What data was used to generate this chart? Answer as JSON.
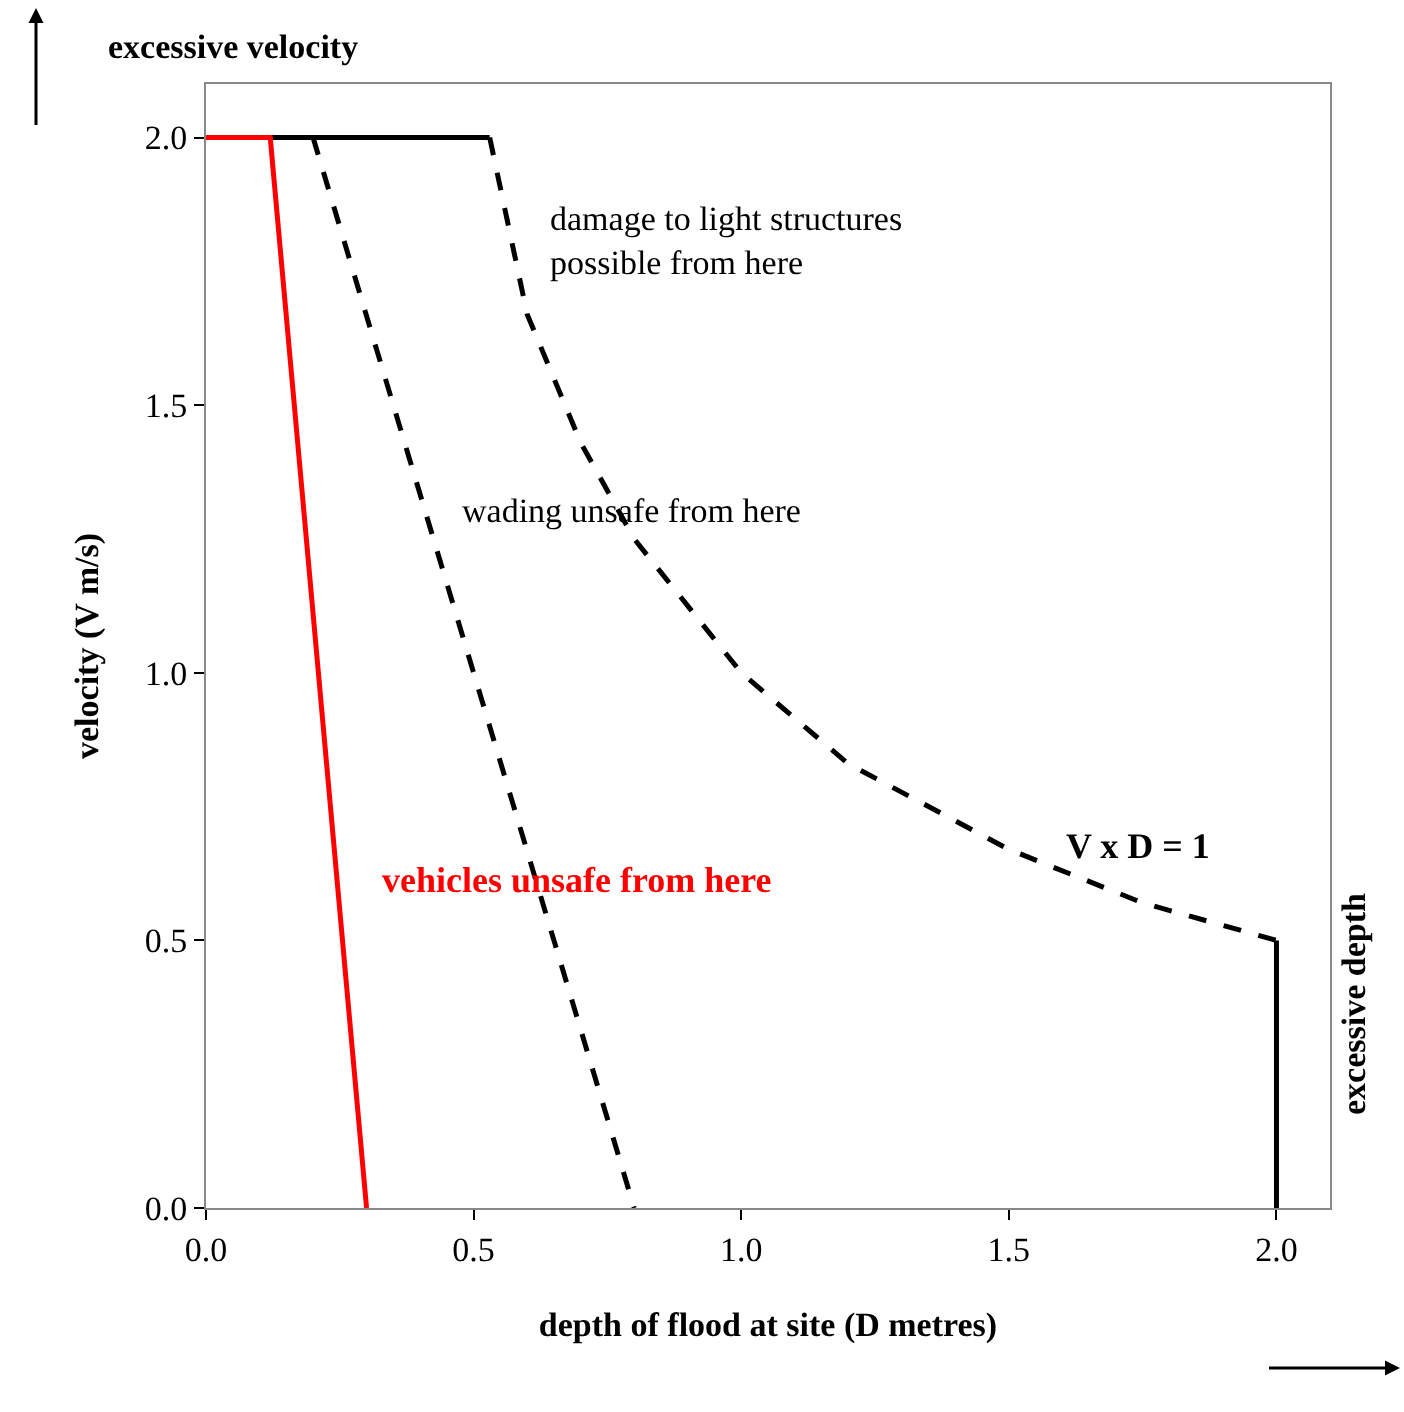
{
  "chart_data": {
    "type": "line",
    "xlabel": "depth of flood at site (D metres)",
    "ylabel": "velocity (V m/s)",
    "xlim": [
      0,
      2.1
    ],
    "ylim": [
      0,
      2.1
    ],
    "xticks": [
      {
        "value": 0,
        "label": "0.0"
      },
      {
        "value": 0.5,
        "label": "0.5"
      },
      {
        "value": 1,
        "label": "1.0"
      },
      {
        "value": 1.5,
        "label": "1.5"
      },
      {
        "value": 2,
        "label": "2.0"
      }
    ],
    "yticks": [
      {
        "value": 0,
        "label": "0.0"
      },
      {
        "value": 0.5,
        "label": "0.5"
      },
      {
        "value": 1,
        "label": "1.0"
      },
      {
        "value": 1.5,
        "label": "1.5"
      },
      {
        "value": 2,
        "label": "2.0"
      }
    ],
    "marker": "none",
    "series": [
      {
        "color": "#000000",
        "line_style": "solid",
        "x": [
          0,
          0.53
        ],
        "values": [
          2,
          2
        ]
      },
      {
        "color": "#000000",
        "line_style": "dashed",
        "x": [
          0.53,
          0.6,
          0.7,
          0.8,
          1.0,
          1.2,
          1.5,
          1.75,
          2.0
        ],
        "values": [
          2,
          1.67,
          1.43,
          1.25,
          1.0,
          0.83,
          0.67,
          0.57,
          0.5
        ]
      },
      {
        "color": "#000000",
        "line_style": "solid",
        "x": [
          2.0,
          2.0
        ],
        "values": [
          0.5,
          0
        ]
      },
      {
        "color": "#000000",
        "line_style": "dashed",
        "x": [
          0.2,
          0.8
        ],
        "values": [
          2,
          0
        ]
      },
      {
        "color": "#ff0000",
        "line_style": "solid",
        "x": [
          0,
          0.12,
          0.3
        ],
        "values": [
          2,
          2,
          0
        ]
      }
    ],
    "annotations": [
      "damage to light structures\npossible from here",
      "wading unsafe from here",
      "vehicles unsafe from here",
      "V x D = 1",
      "excessive velocity",
      "excessive depth"
    ]
  }
}
